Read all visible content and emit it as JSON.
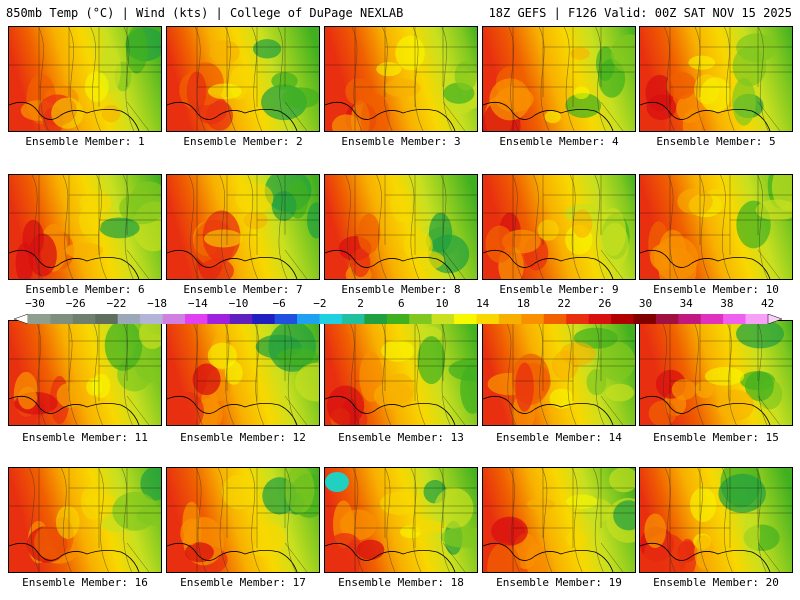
{
  "header": {
    "left": "850mb Temp (°C) | Wind (kts) | College of DuPage NEXLAB",
    "right": "18Z GEFS | F126 Valid: 00Z SAT NOV 15 2025"
  },
  "caption_prefix": "Ensemble Member: ",
  "members": [
    "1",
    "2",
    "3",
    "4",
    "5",
    "6",
    "7",
    "8",
    "9",
    "10",
    "11",
    "12",
    "13",
    "14",
    "15",
    "16",
    "17",
    "18",
    "19",
    "20"
  ],
  "colorbar": {
    "labels": [
      "−30",
      "−26",
      "−22",
      "−18",
      "−14",
      "−10",
      "−6",
      "−2",
      "2",
      "6",
      "10",
      "14",
      "18",
      "22",
      "26",
      "30",
      "34",
      "38",
      "42"
    ],
    "colors": [
      "#8f9f8f",
      "#7f8f7f",
      "#6f7f6f",
      "#5f6f5f",
      "#9aa8b8",
      "#b4b4d8",
      "#d080e0",
      "#e040f0",
      "#a020e0",
      "#6020c0",
      "#2020c0",
      "#2050e0",
      "#20a0f0",
      "#20d0e0",
      "#20c0a0",
      "#20a040",
      "#40b020",
      "#80c820",
      "#c8e020",
      "#f8f800",
      "#f8d800",
      "#f8b000",
      "#f89000",
      "#f06000",
      "#e83010",
      "#d81010",
      "#b00000",
      "#800000",
      "#a01040",
      "#c01880",
      "#e030c0",
      "#f060f0",
      "#f8a0f8"
    ]
  }
}
